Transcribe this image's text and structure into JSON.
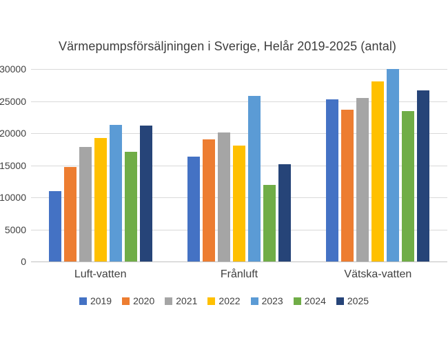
{
  "chart_data": {
    "type": "bar",
    "title": "Värmepumpsförsäljningen i Sverige, Helår 2019-2025 (antal)",
    "xlabel": "",
    "ylabel": "",
    "categories": [
      "Luft-vatten",
      "Frånluft",
      "Vätska-vatten"
    ],
    "series": [
      {
        "name": "2019",
        "color": "#4472C4",
        "values": [
          11000,
          16300,
          25300
        ]
      },
      {
        "name": "2020",
        "color": "#ED7D31",
        "values": [
          14700,
          19000,
          23700
        ]
      },
      {
        "name": "2021",
        "color": "#A5A5A5",
        "values": [
          17800,
          20100,
          25500
        ]
      },
      {
        "name": "2022",
        "color": "#FFC000",
        "values": [
          19200,
          18100,
          28100
        ]
      },
      {
        "name": "2023",
        "color": "#5B9BD5",
        "values": [
          21300,
          25800,
          30000
        ]
      },
      {
        "name": "2024",
        "color": "#70AD47",
        "values": [
          17100,
          11900,
          23400
        ]
      },
      {
        "name": "2025",
        "color": "#264478",
        "values": [
          21200,
          15200,
          26700
        ]
      }
    ],
    "ylim": [
      0,
      30000
    ],
    "yticks": [
      0,
      5000,
      10000,
      15000,
      20000,
      25000,
      30000
    ],
    "grid": true,
    "legend_position": "bottom",
    "legend_labels": [
      "2019",
      "2020",
      "2021",
      "2022",
      "2023",
      "2024",
      "2025"
    ]
  },
  "style_colors": {
    "gridline": "#d9d9d9",
    "axis_line": "#bfbfbf",
    "text": "#404040",
    "background": "#ffffff"
  }
}
